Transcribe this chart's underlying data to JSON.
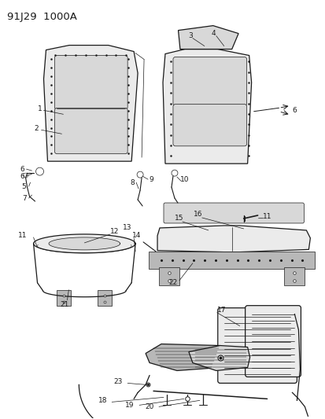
{
  "title": "91J29  1000A",
  "bg_color": "#ffffff",
  "line_color": "#1a1a1a",
  "fig_width": 4.14,
  "fig_height": 5.33,
  "dpi": 100,
  "font_size": 6.5,
  "title_fontsize": 9.5,
  "lw_main": 0.9,
  "lw_detail": 0.5,
  "lw_thin": 0.35,
  "seat_gray": "#d8d8d8",
  "seat_dark": "#b8b8b8",
  "seat_light": "#ebebeb",
  "white": "#ffffff"
}
